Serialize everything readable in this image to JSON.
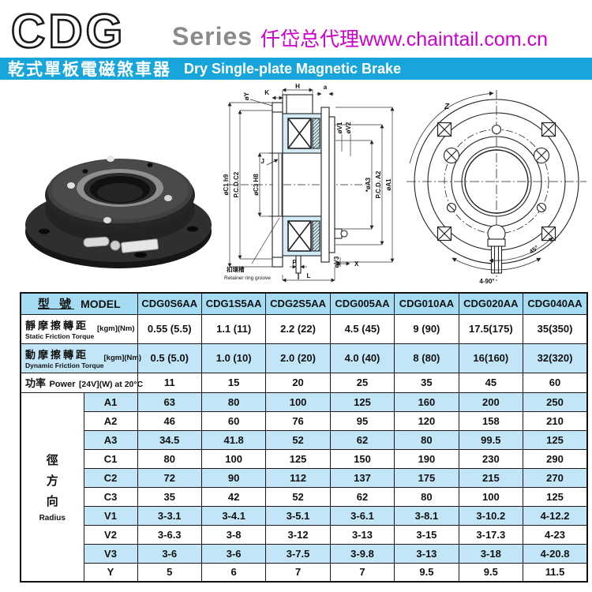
{
  "header": {
    "logo": "CDG",
    "series": "Series",
    "dealer": "仟岱总代理www.chaintail.com.cn"
  },
  "banner": {
    "zh": "乾式單板電磁煞車器",
    "en": "Dry Single-plate Magnetic Brake"
  },
  "colors": {
    "banner": "#17a5dc",
    "head_cyan": "#a6dcf3",
    "row_cyan": "#c2e6f7",
    "magenta": "#cc00cc",
    "series_gray": "#8a8a8a"
  },
  "drawing": {
    "cross_section": {
      "labels": {
        "h": "H",
        "k": "K",
        "oy": "øY",
        "a": "a",
        "ov1": "øV1",
        "ov2": "øV2",
        "oc1": "øC1 h9",
        "pcdc2": "P.C.D.C2",
        "oc3": "øC3 H8",
        "j": "J",
        "oa3": "*øA3",
        "pcda2": "P.C.D. A2",
        "oa1": "øA1",
        "ov3": "øV3",
        "x": "X",
        "p": "P",
        "l": "L",
        "retainer_zh": "扣環槽",
        "retainer_en": "Retainer ring groove"
      }
    },
    "front_view": {
      "labels": {
        "z": "Z",
        "deg45": "45°",
        "deg490": "4-90°"
      }
    }
  },
  "table": {
    "model_header": {
      "zh": "型 號",
      "en": "MODEL"
    },
    "models": [
      "CDG0S6AA",
      "CDG1S5AA",
      "CDG2S5AA",
      "CDG005AA",
      "CDG010AA",
      "CDG020AA",
      "CDG040AA"
    ],
    "spec_rows": [
      {
        "zh": "靜摩擦轉距",
        "en": "Static Friction Torque",
        "unit": "[kgm](Nm)",
        "stacked": true,
        "shade": false,
        "values": [
          "0.55 (5.5)",
          "1.1 (11)",
          "2.2 (22)",
          "4.5 (45)",
          "9 (90)",
          "17.5(175)",
          "35(350)"
        ]
      },
      {
        "zh": "動摩擦轉距",
        "en": "Dynamic Friction Torque",
        "unit": "[kgm](Nm)",
        "stacked": true,
        "shade": true,
        "values": [
          "0.5 (5.0)",
          "1.0 (10)",
          "2.0 (20)",
          "4.0 (40)",
          "8 (80)",
          "16(160)",
          "32(320)"
        ]
      },
      {
        "zh": "功率",
        "en": "Power",
        "unit": "[24V](W) at 20°C",
        "stacked": false,
        "shade": false,
        "values": [
          "11",
          "15",
          "20",
          "25",
          "35",
          "45",
          "60"
        ]
      }
    ],
    "radius_label": {
      "zh": "徑方向",
      "en": "Radius"
    },
    "radius_rows": [
      {
        "dim": "A1",
        "shade": true,
        "values": [
          "63",
          "80",
          "100",
          "125",
          "160",
          "200",
          "250"
        ]
      },
      {
        "dim": "A2",
        "shade": false,
        "values": [
          "46",
          "60",
          "76",
          "95",
          "120",
          "158",
          "210"
        ]
      },
      {
        "dim": "A3",
        "shade": true,
        "values": [
          "34.5",
          "41.8",
          "52",
          "62",
          "80",
          "99.5",
          "125"
        ]
      },
      {
        "dim": "C1",
        "shade": false,
        "values": [
          "80",
          "100",
          "125",
          "150",
          "190",
          "230",
          "290"
        ]
      },
      {
        "dim": "C2",
        "shade": true,
        "values": [
          "72",
          "90",
          "112",
          "137",
          "175",
          "215",
          "270"
        ]
      },
      {
        "dim": "C3",
        "shade": false,
        "values": [
          "35",
          "42",
          "52",
          "62",
          "80",
          "100",
          "125"
        ]
      },
      {
        "dim": "V1",
        "shade": true,
        "values": [
          "3-3.1",
          "3-4.1",
          "3-5.1",
          "3-6.1",
          "3-8.1",
          "3-10.2",
          "4-12.2"
        ]
      },
      {
        "dim": "V2",
        "shade": false,
        "values": [
          "3-6.3",
          "3-8",
          "3-12",
          "3-13",
          "3-15",
          "3-17.3",
          "4-23"
        ]
      },
      {
        "dim": "V3",
        "shade": true,
        "values": [
          "3-6",
          "3-6",
          "3-7.5",
          "3-9.8",
          "3-13",
          "3-18",
          "4-20.8"
        ]
      },
      {
        "dim": "Y",
        "shade": false,
        "values": [
          "5",
          "6",
          "7",
          "7",
          "9.5",
          "9.5",
          "11.5"
        ]
      }
    ]
  }
}
